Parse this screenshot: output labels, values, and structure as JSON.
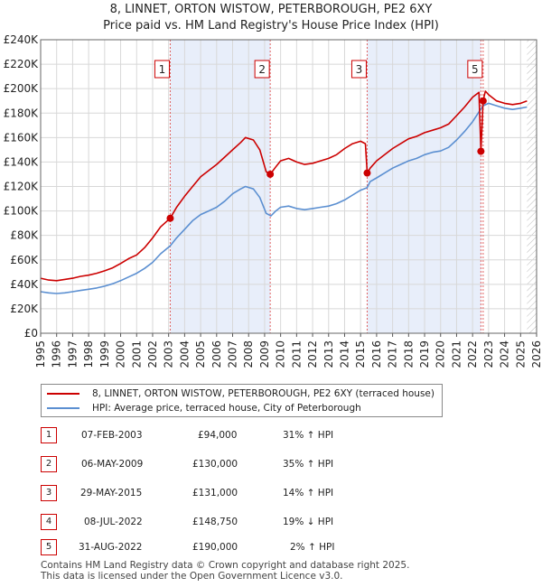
{
  "title_line1": "8, LINNET, ORTON WISTOW, PETERBOROUGH, PE2 6XY",
  "title_line2": "Price paid vs. HM Land Registry's House Price Index (HPI)",
  "chart_data": {
    "type": "line",
    "title": "8, LINNET, ORTON WISTOW, PETERBOROUGH, PE2 6XY — Price paid vs. HM Land Registry's House Price Index (HPI)",
    "xlim": [
      1995,
      2026
    ],
    "ylim": [
      0,
      240000
    ],
    "y_ticks": [
      {
        "value": 0,
        "label": "£0"
      },
      {
        "value": 20000,
        "label": "£20K"
      },
      {
        "value": 40000,
        "label": "£40K"
      },
      {
        "value": 60000,
        "label": "£60K"
      },
      {
        "value": 80000,
        "label": "£80K"
      },
      {
        "value": 100000,
        "label": "£100K"
      },
      {
        "value": 120000,
        "label": "£120K"
      },
      {
        "value": 140000,
        "label": "£140K"
      },
      {
        "value": 160000,
        "label": "£160K"
      },
      {
        "value": 180000,
        "label": "£180K"
      },
      {
        "value": 200000,
        "label": "£200K"
      },
      {
        "value": 220000,
        "label": "£220K"
      },
      {
        "value": 240000,
        "label": "£240K"
      }
    ],
    "x_ticks": [
      "1995",
      "1996",
      "1997",
      "1998",
      "1999",
      "2000",
      "2001",
      "2002",
      "2003",
      "2004",
      "2005",
      "2006",
      "2007",
      "2008",
      "2009",
      "2010",
      "2011",
      "2012",
      "2013",
      "2014",
      "2015",
      "2016",
      "2017",
      "2018",
      "2019",
      "2020",
      "2021",
      "2022",
      "2023",
      "2024",
      "2025",
      "2026"
    ],
    "series": [
      {
        "name": "8, LINNET, ORTON WISTOW, PETERBOROUGH, PE2 6XY (terraced house)",
        "color": "#cc0000",
        "x": [
          1995.0,
          1995.5,
          1996.0,
          1996.5,
          1997.0,
          1997.5,
          1998.0,
          1998.5,
          1999.0,
          1999.5,
          2000.0,
          2000.5,
          2001.0,
          2001.5,
          2002.0,
          2002.5,
          2003.1,
          2003.5,
          2004.0,
          2004.5,
          2005.0,
          2005.5,
          2006.0,
          2006.5,
          2007.0,
          2007.5,
          2007.8,
          2008.3,
          2008.7,
          2009.1,
          2009.35,
          2009.7,
          2010.0,
          2010.5,
          2011.0,
          2011.5,
          2012.0,
          2012.5,
          2013.0,
          2013.5,
          2014.0,
          2014.5,
          2015.0,
          2015.3,
          2015.41,
          2015.6,
          2016.0,
          2016.5,
          2017.0,
          2017.5,
          2018.0,
          2018.5,
          2019.0,
          2019.5,
          2020.0,
          2020.5,
          2021.0,
          2021.5,
          2022.0,
          2022.4,
          2022.52,
          2022.66,
          2022.8,
          2023.0,
          2023.5,
          2024.0,
          2024.5,
          2025.0,
          2025.4
        ],
        "y": [
          45000,
          43500,
          43000,
          44000,
          45000,
          46500,
          47500,
          49000,
          51000,
          53500,
          57000,
          61000,
          64000,
          70000,
          78000,
          87000,
          94000,
          103000,
          112000,
          120000,
          128000,
          133000,
          138000,
          144000,
          150000,
          156000,
          160000,
          158000,
          150000,
          132000,
          130000,
          136000,
          141000,
          143000,
          140000,
          138000,
          139000,
          141000,
          143000,
          146000,
          151000,
          155000,
          157000,
          155000,
          131000,
          135000,
          141000,
          146000,
          151000,
          155000,
          159000,
          161000,
          164000,
          166000,
          168000,
          171000,
          178000,
          185000,
          193000,
          197000,
          148750,
          190000,
          198000,
          195000,
          190000,
          188000,
          187000,
          188000,
          190000
        ]
      },
      {
        "name": "HPI: Average price, terraced house, City of Peterborough",
        "color": "#5b8fd1",
        "x": [
          1995.0,
          1995.5,
          1996.0,
          1996.5,
          1997.0,
          1997.5,
          1998.0,
          1998.5,
          1999.0,
          1999.5,
          2000.0,
          2000.5,
          2001.0,
          2001.5,
          2002.0,
          2002.5,
          2003.1,
          2003.5,
          2004.0,
          2004.5,
          2005.0,
          2005.5,
          2006.0,
          2006.5,
          2007.0,
          2007.5,
          2007.8,
          2008.3,
          2008.7,
          2009.1,
          2009.4,
          2009.7,
          2010.0,
          2010.5,
          2011.0,
          2011.5,
          2012.0,
          2012.5,
          2013.0,
          2013.5,
          2014.0,
          2014.5,
          2015.0,
          2015.4,
          2015.6,
          2016.0,
          2016.5,
          2017.0,
          2017.5,
          2018.0,
          2018.5,
          2019.0,
          2019.5,
          2020.0,
          2020.5,
          2021.0,
          2021.5,
          2022.0,
          2022.5,
          2022.66,
          2023.0,
          2023.5,
          2024.0,
          2024.5,
          2025.0,
          2025.4
        ],
        "y": [
          34000,
          33000,
          32500,
          33000,
          34000,
          35000,
          36000,
          37000,
          38500,
          40500,
          43000,
          46000,
          49000,
          53000,
          58000,
          65000,
          71500,
          78000,
          85000,
          92000,
          97000,
          100000,
          103000,
          108000,
          114000,
          118000,
          120000,
          118000,
          111000,
          98000,
          96000,
          100000,
          103000,
          104000,
          102000,
          101000,
          102000,
          103000,
          104000,
          106000,
          109000,
          113000,
          117000,
          119000,
          124000,
          127000,
          131000,
          135000,
          138000,
          141000,
          143000,
          146000,
          148000,
          149000,
          152000,
          158000,
          165000,
          173000,
          183000,
          186000,
          188000,
          186000,
          184000,
          183000,
          184000,
          185000
        ]
      }
    ],
    "sales": [
      {
        "id": "1",
        "date": "07-FEB-2003",
        "year": 2003.1,
        "price": 94000,
        "price_label": "£94,000",
        "hpi": "31% ↑ HPI"
      },
      {
        "id": "2",
        "date": "06-MAY-2009",
        "year": 2009.35,
        "price": 130000,
        "price_label": "£130,000",
        "hpi": "35% ↑ HPI"
      },
      {
        "id": "3",
        "date": "29-MAY-2015",
        "year": 2015.41,
        "price": 131000,
        "price_label": "£131,000",
        "hpi": "14% ↑ HPI"
      },
      {
        "id": "4",
        "date": "08-JUL-2022",
        "year": 2022.52,
        "price": 148750,
        "price_label": "£148,750",
        "hpi": "19% ↓ HPI"
      },
      {
        "id": "5",
        "date": "31-AUG-2022",
        "year": 2022.66,
        "price": 190000,
        "price_label": "£190,000",
        "hpi": "2% ↑ HPI"
      }
    ],
    "shown_marker_labels": [
      "1",
      "2",
      "3",
      "5"
    ],
    "shaded_regions": [
      [
        2003.1,
        2009.35
      ],
      [
        2015.41,
        2022.52
      ]
    ],
    "projection_start": 2025.4
  },
  "legend": {
    "property_label": "8, LINNET, ORTON WISTOW, PETERBOROUGH, PE2 6XY (terraced house)",
    "hpi_label": "HPI: Average price, terraced house, City of Peterborough"
  },
  "colors": {
    "property": "#cc0000",
    "hpi": "#5b8fd1",
    "shade": "#e8eefa"
  },
  "footer": {
    "line1": "Contains HM Land Registry data © Crown copyright and database right 2025.",
    "line2": "This data is licensed under the Open Government Licence v3.0."
  }
}
